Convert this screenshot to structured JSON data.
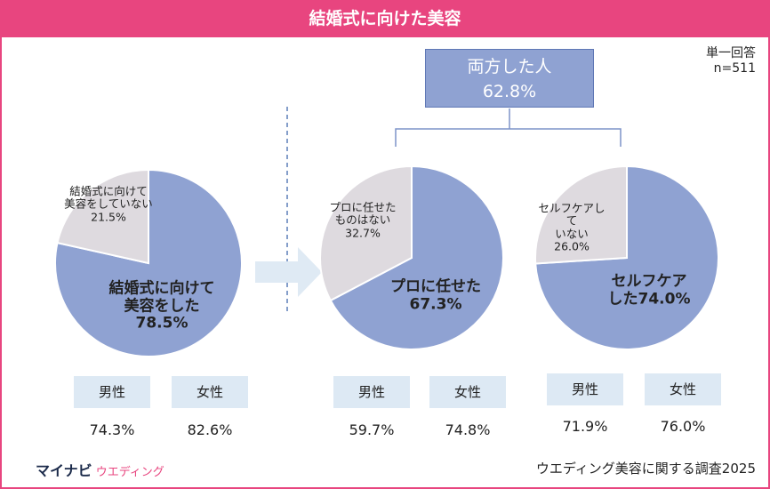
{
  "title": "結婚式に向けた美容",
  "note": [
    "単一回答",
    "n=511"
  ],
  "both": {
    "label": "両方した人",
    "value": 62.8,
    "value_label": "62.8%"
  },
  "chart_data": [
    {
      "type": "pie",
      "categories": [
        "結婚式に向けて\n美容をした",
        "結婚式に向けて\n美容をしていない"
      ],
      "values": [
        78.5,
        21.5
      ],
      "value_labels": [
        "78.5%",
        "21.5%"
      ],
      "colors": [
        "#8fa2d2",
        "#dedadf"
      ],
      "breakdown": {
        "categories": [
          "男性",
          "女性"
        ],
        "values": [
          74.3,
          82.6
        ],
        "value_labels": [
          "74.3%",
          "82.6%"
        ]
      }
    },
    {
      "type": "pie",
      "categories": [
        "プロに任せた",
        "プロに任せた\nものはない"
      ],
      "values": [
        67.3,
        32.7
      ],
      "value_labels": [
        "67.3%",
        "32.7%"
      ],
      "colors": [
        "#8fa2d2",
        "#dedadf"
      ],
      "breakdown": {
        "categories": [
          "男性",
          "女性"
        ],
        "values": [
          59.7,
          74.8
        ],
        "value_labels": [
          "59.7%",
          "74.8%"
        ]
      }
    },
    {
      "type": "pie",
      "categories": [
        "セルフケア\nした",
        "セルフケアし\nて\nいない"
      ],
      "values": [
        74.0,
        26.0
      ],
      "value_labels": [
        "74.0%",
        "26.0%"
      ],
      "colors": [
        "#8fa2d2",
        "#dedadf"
      ],
      "breakdown": {
        "categories": [
          "男性",
          "女性"
        ],
        "values": [
          71.9,
          76.0
        ],
        "value_labels": [
          "71.9%",
          "76.0%"
        ]
      }
    }
  ],
  "footer": {
    "brand": "マイナビ",
    "brand_sub": "ウエディング",
    "source": "ウエディング美容に関する調査2025"
  }
}
